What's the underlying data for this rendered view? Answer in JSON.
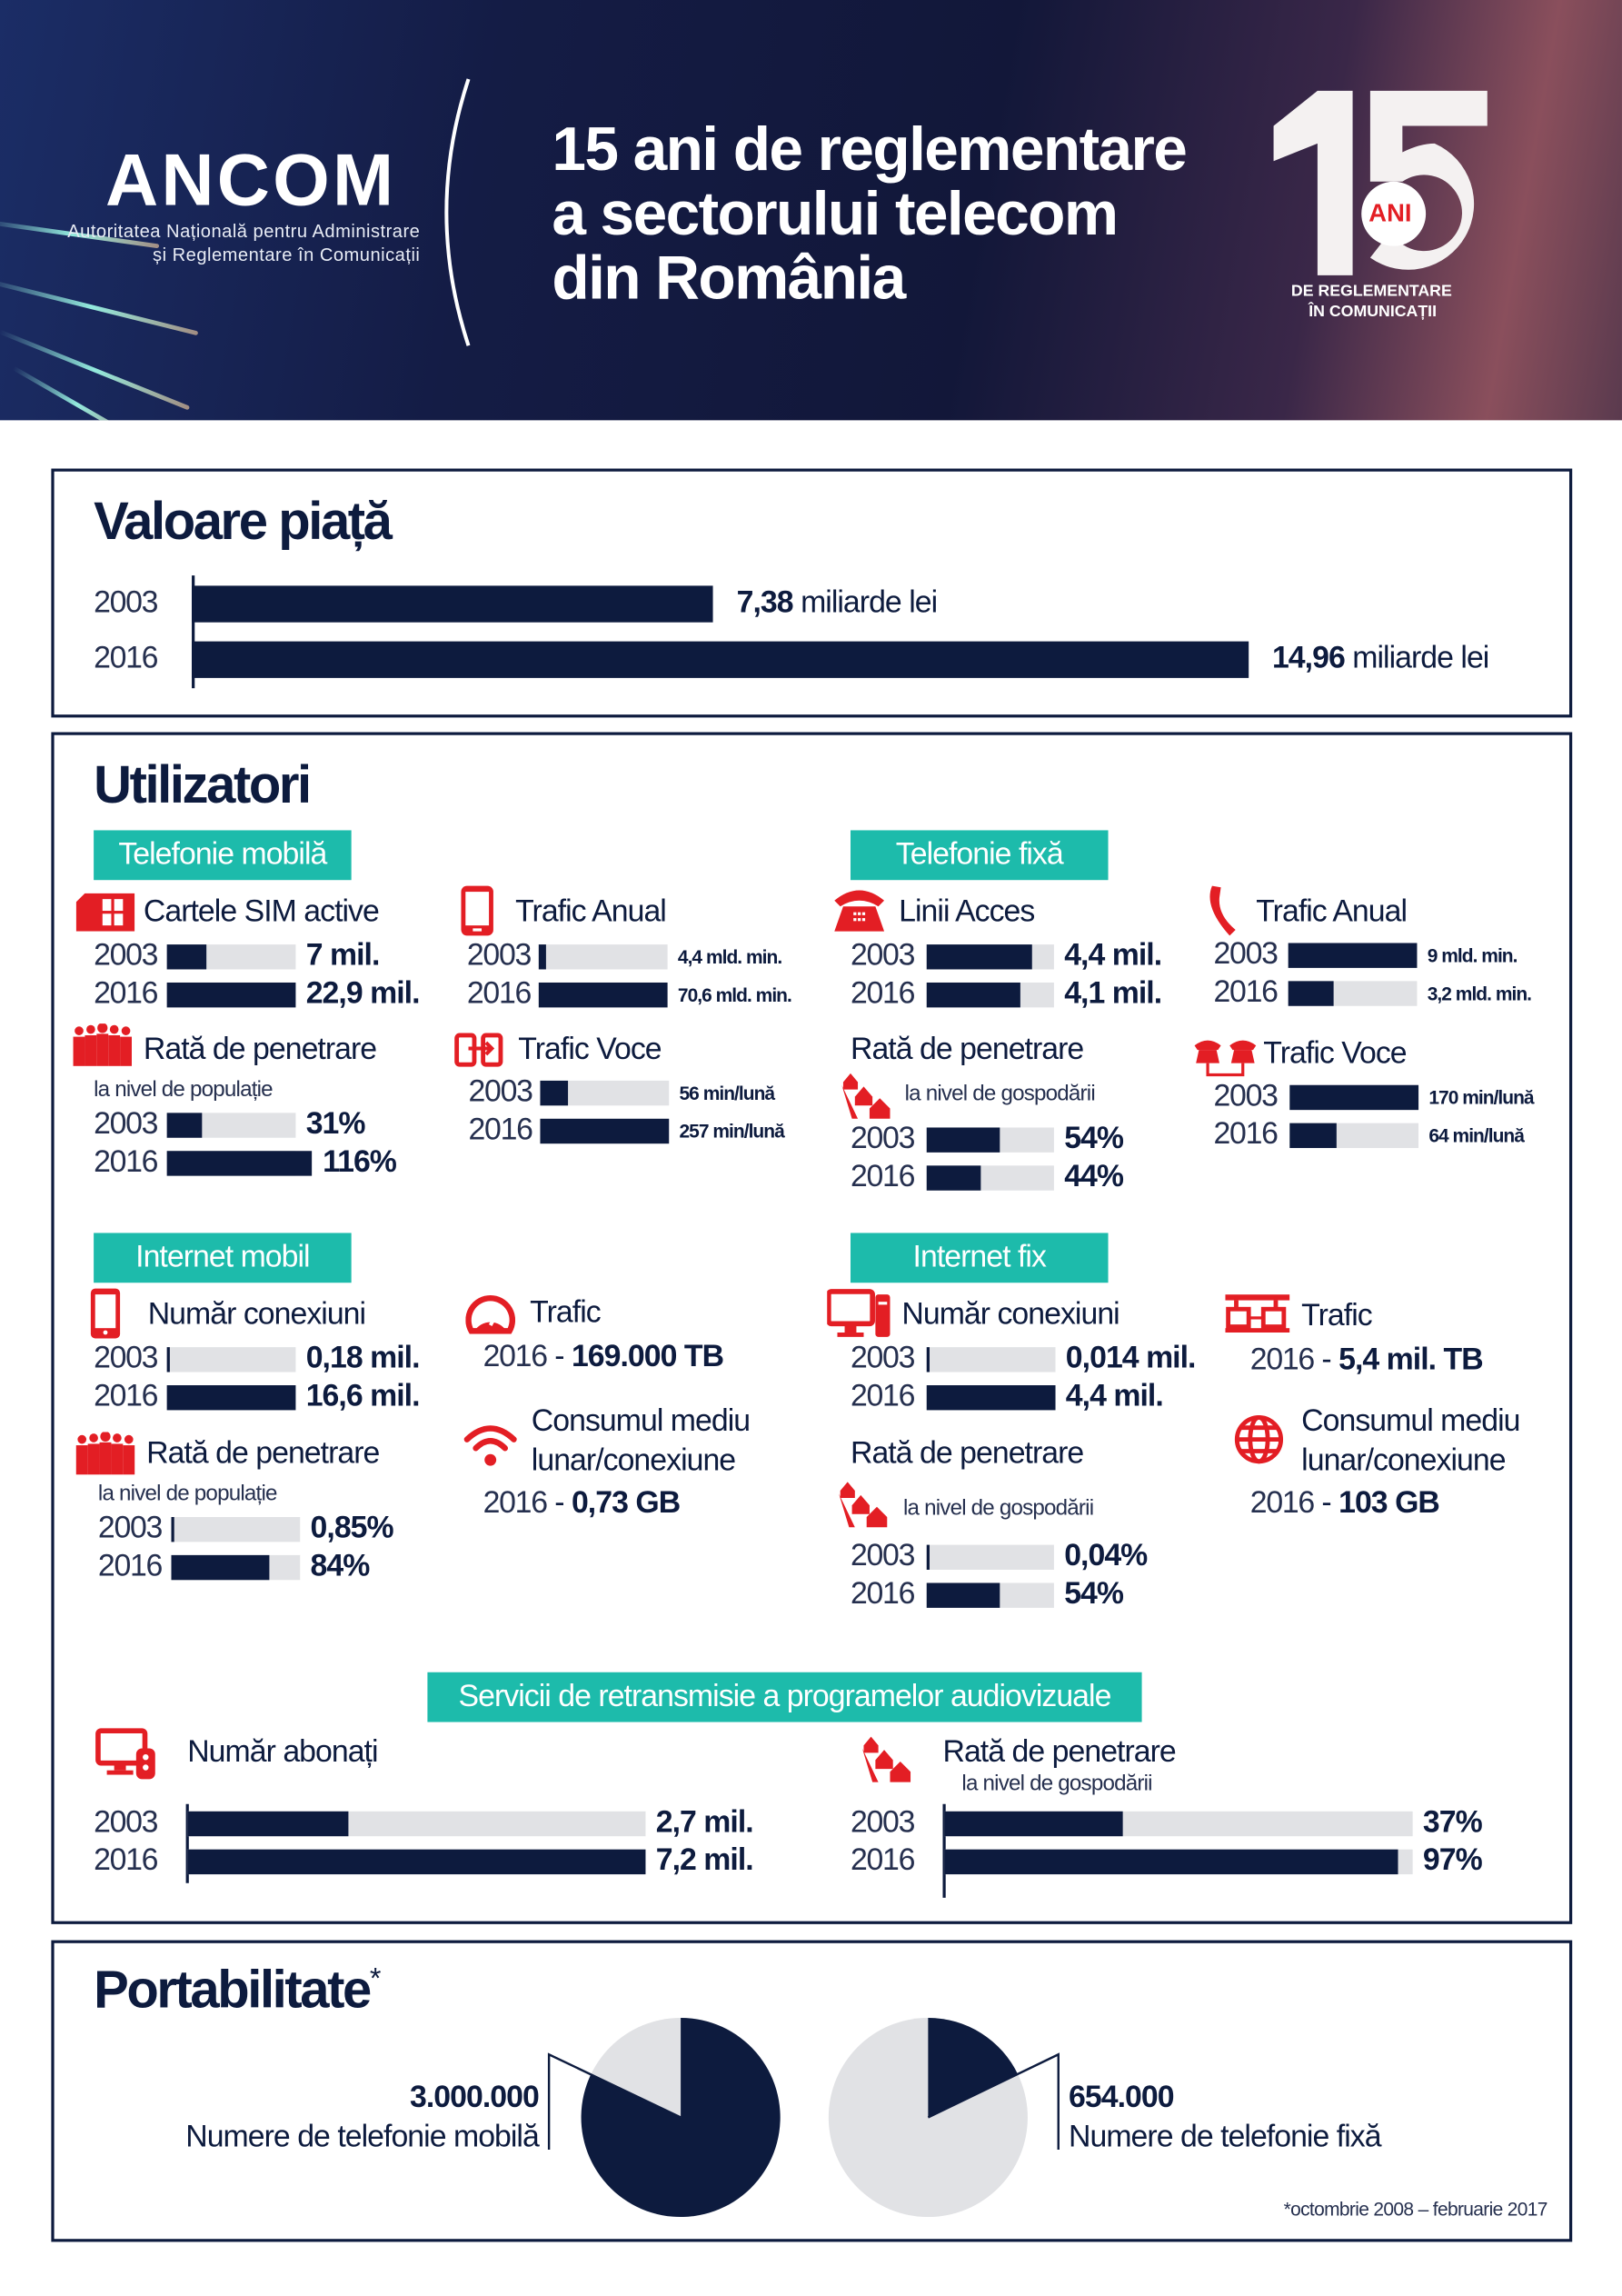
{
  "colors": {
    "navy": "#0d1b3e",
    "teal": "#1dbbab",
    "red": "#e31e24",
    "track": "#e1e2e5"
  },
  "header": {
    "logo": "ANCOM",
    "logo_sub1": "Autoritatea Națională pentru Administrare",
    "logo_sub2": "și Reglementare în Comunicații",
    "title": [
      "15 ani de reglementare",
      "a sectorului telecom",
      "din România"
    ],
    "badge": {
      "number": "15",
      "ani": "ANI",
      "line1": "DE REGLEMENTARE",
      "line2": "ÎN COMUNICAȚII"
    }
  },
  "market": {
    "title": "Valoare piață",
    "rows": [
      {
        "year": "2003",
        "value": "7,38",
        "unit": "miliarde lei",
        "amount": 7.38
      },
      {
        "year": "2016",
        "value": "14,96",
        "unit": "miliarde lei",
        "amount": 14.96
      }
    ]
  },
  "users": {
    "title": "Utilizatori",
    "categories": {
      "mobile": "Telefonie mobilă",
      "fixed": "Telefonie fixă",
      "mobile_internet": "Internet mobil",
      "fixed_internet": "Internet fix",
      "broadcast": "Servicii de retransmisie a programelor audiovizuale"
    },
    "metrics": {
      "sim": {
        "title": "Cartele SIM active",
        "icon": "sim-card-icon",
        "rows": [
          {
            "year": "2003",
            "value": "7 mil.",
            "fill": 0.31
          },
          {
            "year": "2016",
            "value": "22,9 mil.",
            "fill": 1
          }
        ]
      },
      "mobile_traffic": {
        "title": "Trafic Anual",
        "icon": "smartphone-icon",
        "rows": [
          {
            "year": "2003",
            "value": "4,4 mld. min.",
            "fill": 0.06
          },
          {
            "year": "2016",
            "value": "70,6 mld. min.",
            "fill": 1
          }
        ]
      },
      "mobile_penetration": {
        "title": "Rată de penetrare",
        "subtitle": "la nivel de populație",
        "icon": "people-icon",
        "rows": [
          {
            "year": "2003",
            "value": "31%",
            "fill": 0.27
          },
          {
            "year": "2016",
            "value": "116%",
            "fill": 1.13
          }
        ]
      },
      "mobile_voice": {
        "title": "Trafic Voce",
        "icon": "phone-transfer-icon",
        "rows": [
          {
            "year": "2003",
            "value": "56 min/lună",
            "fill": 0.22
          },
          {
            "year": "2016",
            "value": "257 min/lună",
            "fill": 1
          }
        ]
      },
      "fixed_lines": {
        "title": "Linii Acces",
        "icon": "desk-phone-icon",
        "rows": [
          {
            "year": "2003",
            "value": "4,4 mil.",
            "fill": 0.83
          },
          {
            "year": "2016",
            "value": "4,1 mil.",
            "fill": 0.74
          }
        ]
      },
      "fixed_traffic": {
        "title": "Trafic Anual",
        "icon": "handset-icon",
        "rows": [
          {
            "year": "2003",
            "value": "9 mld. min.",
            "fill": 1
          },
          {
            "year": "2016",
            "value": "3,2 mld. min.",
            "fill": 0.35
          }
        ]
      },
      "fixed_penetration": {
        "title": "Rată de penetrare",
        "subtitle": "la nivel de gospodării",
        "icon": "houses-icon",
        "rows": [
          {
            "year": "2003",
            "value": "54%",
            "fill": 0.57
          },
          {
            "year": "2016",
            "value": "44%",
            "fill": 0.43
          }
        ]
      },
      "fixed_voice": {
        "title": "Trafic Voce",
        "icon": "two-phones-icon",
        "rows": [
          {
            "year": "2003",
            "value": "170 min/lună",
            "fill": 1
          },
          {
            "year": "2016",
            "value": "64 min/lună",
            "fill": 0.36
          }
        ]
      },
      "mi_connections": {
        "title": "Număr conexiuni",
        "icon": "smartphone-icon",
        "rows": [
          {
            "year": "2003",
            "value": "0,18 mil.",
            "fill": 0.02
          },
          {
            "year": "2016",
            "value": "16,6 mil.",
            "fill": 1
          }
        ]
      },
      "mi_penetration": {
        "title": "Rată de penetrare",
        "subtitle": "la nivel de populație",
        "icon": "people-icon",
        "rows": [
          {
            "year": "2003",
            "value": "0,85%",
            "fill": 0.02
          },
          {
            "year": "2016",
            "value": "84%",
            "fill": 0.76
          }
        ]
      },
      "mi_traffic": {
        "title": "Trafic",
        "icon": "speedometer-icon",
        "year": "2016",
        "value": "169.000 TB"
      },
      "mi_consumption": {
        "title_line1": "Consumul mediu",
        "title_line2": "lunar/conexiune",
        "icon": "wifi-icon",
        "year": "2016",
        "value": "0,73 GB"
      },
      "fi_connections": {
        "title": "Număr conexiuni",
        "icon": "desktop-icon",
        "rows": [
          {
            "year": "2003",
            "value": "0,014 mil.",
            "fill": 0.02
          },
          {
            "year": "2016",
            "value": "4,4 mil.",
            "fill": 1
          }
        ]
      },
      "fi_penetration": {
        "title": "Rată de penetrare",
        "subtitle": "la nivel de gospodării",
        "icon": "houses-icon",
        "rows": [
          {
            "year": "2003",
            "value": "0,04%",
            "fill": 0.02
          },
          {
            "year": "2016",
            "value": "54%",
            "fill": 0.57
          }
        ]
      },
      "fi_traffic": {
        "title": "Trafic",
        "icon": "network-icon",
        "year": "2016",
        "value": "5,4 mil. TB"
      },
      "fi_consumption": {
        "title_line1": "Consumul mediu",
        "title_line2": "lunar/conexiune",
        "icon": "globe-icon",
        "year": "2016",
        "value": "103 GB"
      },
      "subscribers": {
        "title": "Număr abonați",
        "icon": "tv-remote-icon",
        "rows": [
          {
            "year": "2003",
            "value": "2,7 mil.",
            "fill": 0.35
          },
          {
            "year": "2016",
            "value": "7,2 mil.",
            "fill": 1
          }
        ]
      },
      "broadcast_penetration": {
        "title": "Rată de penetrare",
        "subtitle": "la nivel de gospodării",
        "icon": "houses-icon",
        "rows": [
          {
            "year": "2003",
            "value": "37%",
            "fill": 0.38
          },
          {
            "year": "2016",
            "value": "97%",
            "fill": 0.97
          }
        ]
      }
    }
  },
  "portability": {
    "title": "Portabilitate",
    "asterisk": "*",
    "mobile": {
      "value": "3.000.000",
      "label": "Numere de telefonie mobilă",
      "count": 3000000
    },
    "fixed": {
      "value": "654.000",
      "label": "Numere de telefonie fixă",
      "count": 654000
    },
    "footnote": "*octombrie 2008 – februarie 2017"
  }
}
